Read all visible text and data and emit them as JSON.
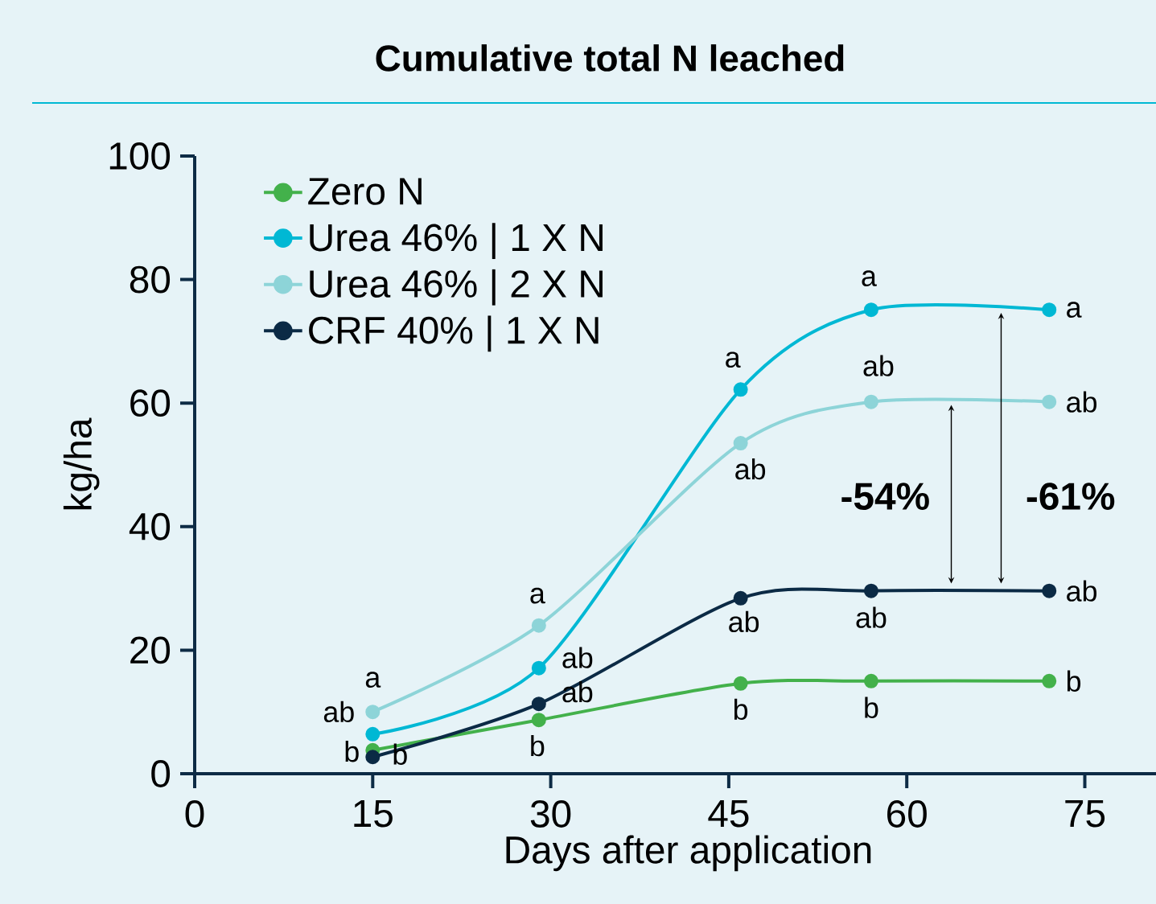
{
  "chart_data": {
    "type": "line",
    "title": "Cumulative total N leached",
    "xlabel": "Days after application",
    "ylabel": "kg/ha",
    "x": [
      15,
      29,
      46,
      57,
      72
    ],
    "series": [
      {
        "name": "Zero N",
        "color": "#43b14b",
        "values": [
          3.8,
          8.7,
          14.6,
          15.0,
          15.0
        ]
      },
      {
        "name": "Urea 46% | 1 X N",
        "color": "#00b8d4",
        "values": [
          6.4,
          17.1,
          62.2,
          75.1,
          75.1
        ]
      },
      {
        "name": "Urea 46% | 2 X N",
        "color": "#8dd4d8",
        "values": [
          10.0,
          24.0,
          53.5,
          60.2,
          60.2
        ]
      },
      {
        "name": "CRF 40% | 1 X N",
        "color": "#0b2a45",
        "values": [
          2.7,
          11.3,
          28.4,
          29.6,
          29.6
        ]
      }
    ],
    "xlim": [
      0,
      81
    ],
    "ylim": [
      0,
      100
    ],
    "xticks": [
      0,
      15,
      30,
      45,
      60,
      75
    ],
    "yticks": [
      0,
      20,
      40,
      60,
      80,
      100
    ],
    "legend": "top left",
    "marker": "circle",
    "line_style": "solid",
    "annotations": [
      "b",
      "ab",
      "a",
      "b",
      "b",
      "ab",
      "a",
      "ab",
      "b",
      "a",
      "ab",
      "ab",
      "b",
      "a",
      "ab",
      "ab",
      "b",
      "a",
      "ab",
      "ab",
      "**-54%**",
      "**-61%**"
    ]
  }
}
